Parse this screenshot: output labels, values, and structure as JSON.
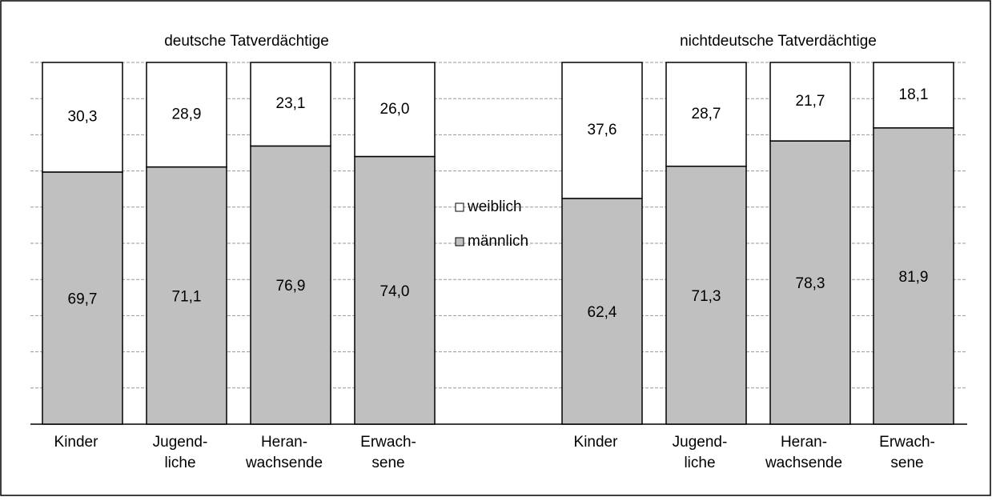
{
  "chart_data": {
    "type": "stacked_bar",
    "group_titles": [
      "deutsche Tatverdächtige",
      "nichtdeutsche Tatverdächtige"
    ],
    "categories": [
      "Kinder",
      "Jugend-\nliche",
      "Heran-\nwachsende",
      "Erwach-\nsene",
      "Kinder",
      "Jugend-\nliche",
      "Heran-\nwachsende",
      "Erwach-\nsene"
    ],
    "series": [
      {
        "name": "männlich",
        "color": "#c0c0c0",
        "values": [
          69.7,
          71.1,
          76.9,
          74.0,
          62.4,
          71.3,
          78.3,
          81.9
        ],
        "value_labels": [
          "69,7",
          "71,1",
          "76,9",
          "74,0",
          "62,4",
          "71,3",
          "78,3",
          "81,9"
        ]
      },
      {
        "name": "weiblich",
        "color": "#ffffff",
        "values": [
          30.3,
          28.9,
          23.1,
          26.0,
          37.6,
          28.7,
          21.7,
          18.1
        ],
        "value_labels": [
          "30,3",
          "28,9",
          "23,1",
          "26,0",
          "37,6",
          "28,7",
          "21,7",
          "18,1"
        ]
      }
    ],
    "ylim": [
      0,
      100
    ],
    "yticks": [
      0,
      10,
      20,
      30,
      40,
      50,
      60,
      70,
      80,
      90,
      100
    ],
    "grid": true
  }
}
